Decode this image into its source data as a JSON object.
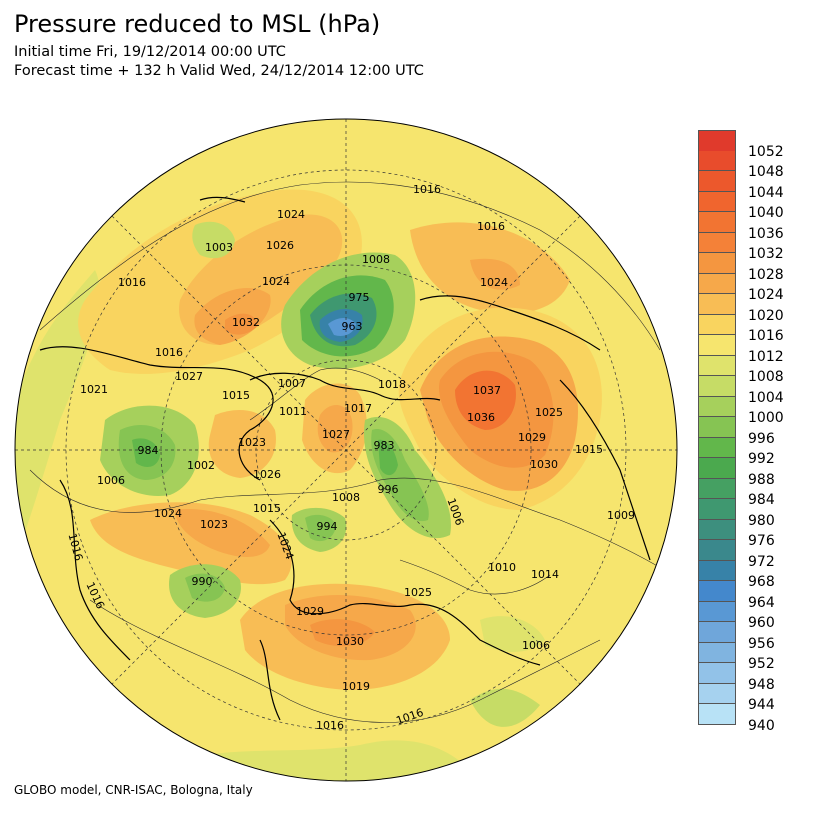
{
  "header": {
    "title": "Pressure reduced to MSL (hPa)",
    "initial_time": "Initial time Fri, 19/12/2014 00:00 UTC",
    "forecast_time": "Forecast time + 132 h Valid Wed, 24/12/2014 12:00 UTC"
  },
  "footer": {
    "credit": "GLOBO model, CNR-ISAC, Bologna, Italy"
  },
  "colorbar": {
    "labels": [
      "1052",
      "1048",
      "1044",
      "1040",
      "1036",
      "1032",
      "1028",
      "1024",
      "1020",
      "1016",
      "1012",
      "1008",
      "1004",
      "1000",
      "996",
      "992",
      "988",
      "984",
      "980",
      "976",
      "972",
      "968",
      "964",
      "960",
      "956",
      "952",
      "948",
      "944",
      "940"
    ],
    "colors": [
      "#e03a2c",
      "#e84c2c",
      "#ec582c",
      "#f0652e",
      "#f27432",
      "#f48138",
      "#f49640",
      "#f6a84a",
      "#f8bd55",
      "#f9d45f",
      "#f6e56e",
      "#dfe36c",
      "#c6dc66",
      "#a6d05c",
      "#86c453",
      "#62b74b",
      "#4ba94e",
      "#45a062",
      "#3f9870",
      "#3d8f7e",
      "#3a888c",
      "#3782a8",
      "#4488cc",
      "#5998d4",
      "#6fa6da",
      "#80b4e0",
      "#92c2e8",
      "#a6d2ef",
      "#b8e2f6"
    ]
  },
  "map": {
    "pressure_labels": [
      {
        "t": "1016"
      },
      {
        "t": "1016"
      },
      {
        "t": "1024"
      },
      {
        "t": "1003"
      },
      {
        "t": "1026"
      },
      {
        "t": "1008"
      },
      {
        "t": "1024"
      },
      {
        "t": "1016"
      },
      {
        "t": "1024"
      },
      {
        "t": "975"
      },
      {
        "t": "1032"
      },
      {
        "t": "963"
      },
      {
        "t": "1016"
      },
      {
        "t": "1027"
      },
      {
        "t": "1007"
      },
      {
        "t": "1018"
      },
      {
        "t": "1037"
      },
      {
        "t": "1021"
      },
      {
        "t": "1015"
      },
      {
        "t": "1011"
      },
      {
        "t": "1017"
      },
      {
        "t": "1036"
      },
      {
        "t": "1025"
      },
      {
        "t": "1027"
      },
      {
        "t": "1029"
      },
      {
        "t": "1023"
      },
      {
        "t": "983"
      },
      {
        "t": "984"
      },
      {
        "t": "1002"
      },
      {
        "t": "1026"
      },
      {
        "t": "1030"
      },
      {
        "t": "1015"
      },
      {
        "t": "1006"
      },
      {
        "t": "1008"
      },
      {
        "t": "996"
      },
      {
        "t": "1015"
      },
      {
        "t": "1024"
      },
      {
        "t": "1023"
      },
      {
        "t": "994"
      },
      {
        "t": "1006"
      },
      {
        "t": "1009"
      },
      {
        "t": "1016"
      },
      {
        "t": "1024"
      },
      {
        "t": "1010"
      },
      {
        "t": "1014"
      },
      {
        "t": "990"
      },
      {
        "t": "1016"
      },
      {
        "t": "1025"
      },
      {
        "t": "1029"
      },
      {
        "t": "1030"
      },
      {
        "t": "1006"
      },
      {
        "t": "1019"
      },
      {
        "t": "1016"
      },
      {
        "t": "1016"
      }
    ]
  }
}
